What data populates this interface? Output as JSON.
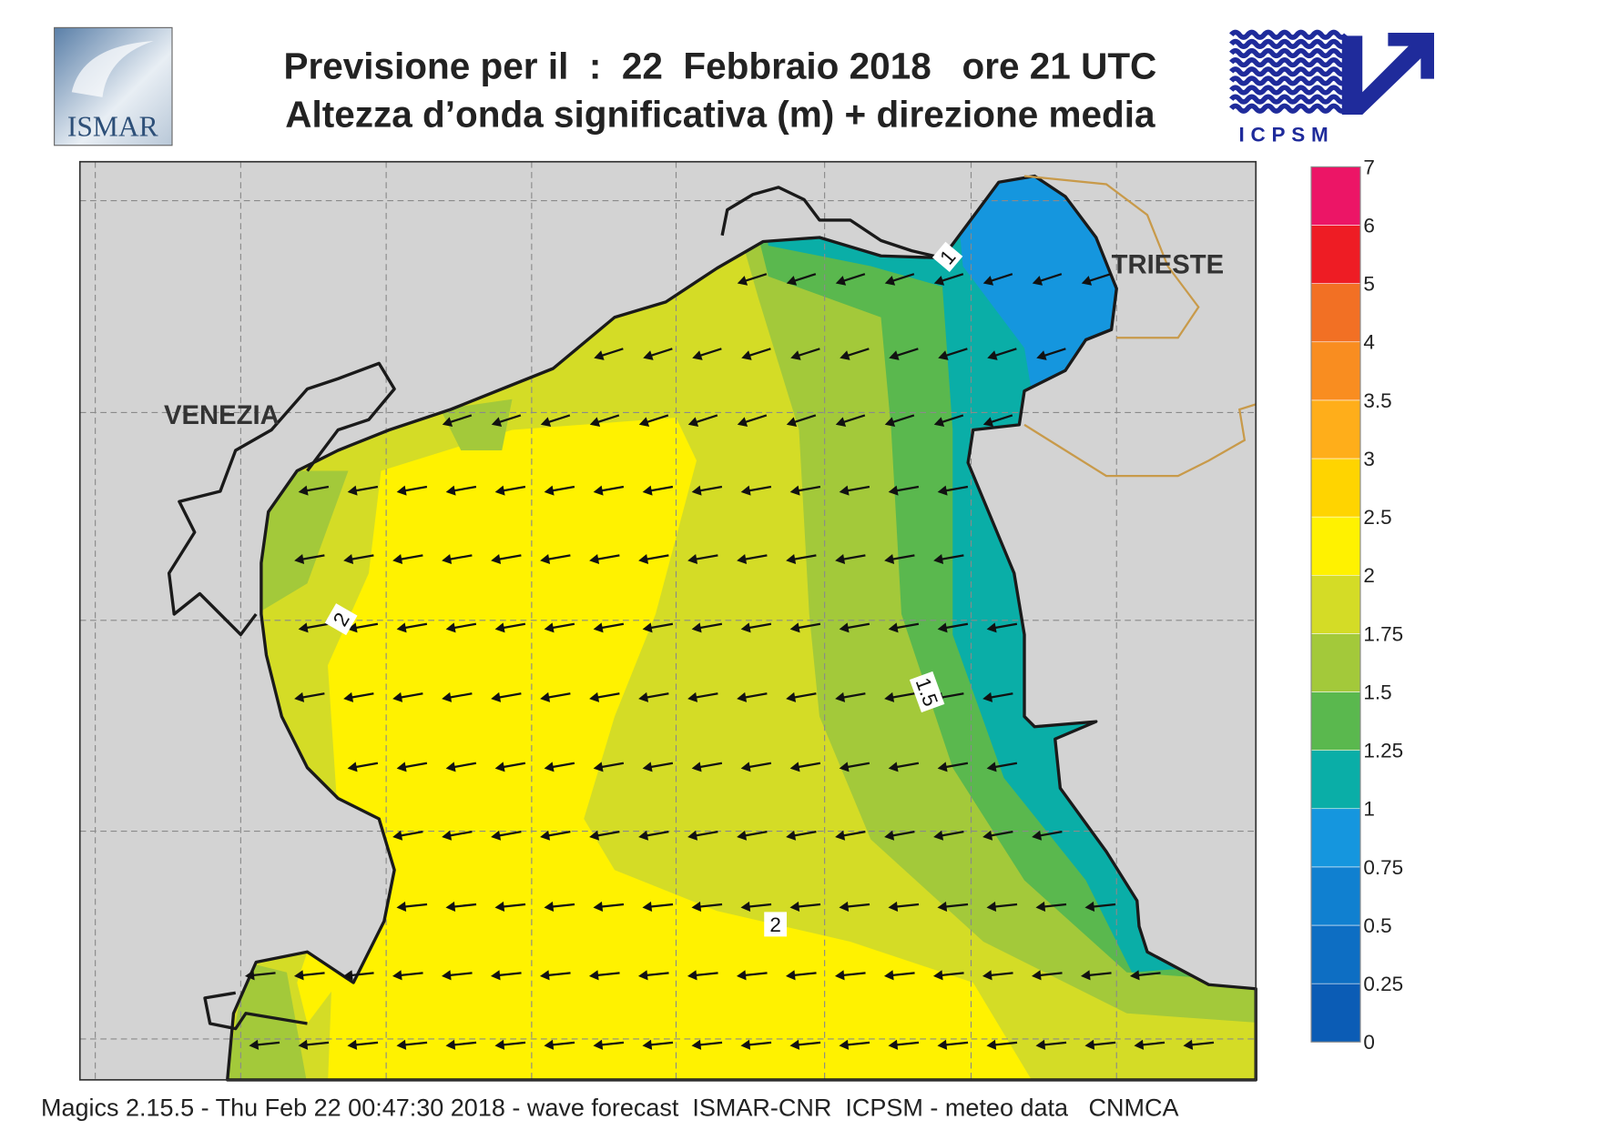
{
  "header": {
    "title": "Previsione per il  :  22  Febbraio 2018   ore 21 UTC",
    "subtitle": "Altezza d’onda significativa (m) + direzione media",
    "logo_left": "ISMAR",
    "logo_right": "ICPSM"
  },
  "map": {
    "city_labels": [
      "VENEZIA",
      "TRIESTE"
    ],
    "contour_labels": [
      2,
      1.5,
      1,
      2
    ]
  },
  "colorbar": {
    "levels": [
      0,
      0.25,
      0.5,
      0.75,
      1,
      1.25,
      1.5,
      1.75,
      2,
      2.5,
      3,
      3.5,
      4,
      5,
      6,
      7
    ],
    "colors": [
      "#0b5cb5",
      "#0d6ec3",
      "#1080d0",
      "#1596de",
      "#0aaea7",
      "#5ab84e",
      "#a3c93a",
      "#d4dc26",
      "#fff200",
      "#ffd400",
      "#ffae1a",
      "#f98d20",
      "#f27024",
      "#ee1c24",
      "#ec1566"
    ]
  },
  "footer": "Magics 2.15.5 - Thu Feb 22 00:47:30 2018 - wave forecast  ISMAR-CNR  ICPSM - meteo data   CNMCA"
}
